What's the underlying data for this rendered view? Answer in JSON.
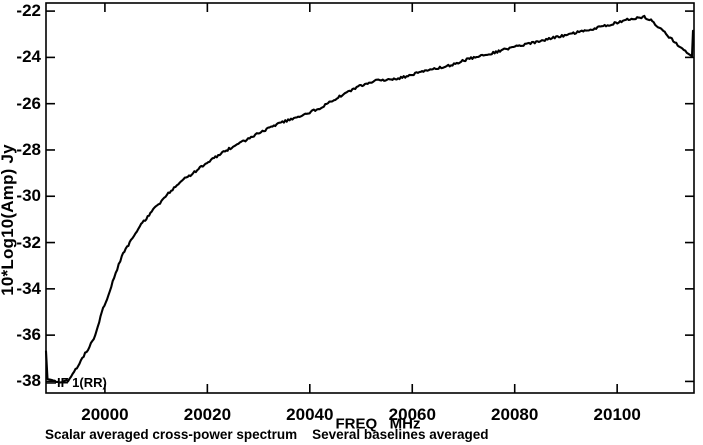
{
  "chart_data": {
    "type": "line",
    "title": "",
    "xlabel": "FREQ   MHz",
    "ylabel": "10*Log10(Amp) Jy",
    "caption": "Scalar averaged cross-power spectrum    Several baselines averaged",
    "annotation": "IF 1(RR)",
    "background": "#ffffff",
    "axis_color": "#000000",
    "grid": false,
    "legend": false,
    "x_range": [
      19988.5,
      20115.0
    ],
    "y_range": [
      -38.5,
      -21.65
    ],
    "x_ticks": [
      20000,
      20020,
      20040,
      20060,
      20080,
      20100
    ],
    "y_ticks": [
      -22,
      -24,
      -26,
      -28,
      -30,
      -32,
      -34,
      -36,
      -38
    ],
    "series": [
      {
        "name": "IF 1(RR)",
        "color": "#000000",
        "points": [
          [
            19988.5,
            -36.7
          ],
          [
            19988.8,
            -37.9
          ],
          [
            19989.9,
            -37.95
          ],
          [
            19990.8,
            -38.0
          ],
          [
            19991.8,
            -38.05
          ],
          [
            19992.8,
            -37.95
          ],
          [
            19994.0,
            -37.6
          ],
          [
            19995.3,
            -37.1
          ],
          [
            19996.7,
            -36.6
          ],
          [
            19998.1,
            -36.05
          ],
          [
            19999.4,
            -35.0
          ],
          [
            20000.4,
            -34.45
          ],
          [
            20001.8,
            -33.5
          ],
          [
            20003.3,
            -32.6
          ],
          [
            20005.1,
            -31.9
          ],
          [
            20006.8,
            -31.3
          ],
          [
            20009.4,
            -30.6
          ],
          [
            20012.1,
            -29.95
          ],
          [
            20014.6,
            -29.4
          ],
          [
            20017.2,
            -29.0
          ],
          [
            20019.9,
            -28.55
          ],
          [
            20022.4,
            -28.2
          ],
          [
            20025.0,
            -27.85
          ],
          [
            20027.7,
            -27.55
          ],
          [
            20030.2,
            -27.25
          ],
          [
            20034.1,
            -26.85
          ],
          [
            20038.0,
            -26.55
          ],
          [
            20041.9,
            -26.2
          ],
          [
            20045.8,
            -25.7
          ],
          [
            20049.7,
            -25.25
          ],
          [
            20052.6,
            -25.02
          ],
          [
            20055.6,
            -24.97
          ],
          [
            20057.5,
            -24.9
          ],
          [
            20061.4,
            -24.65
          ],
          [
            20064.3,
            -24.5
          ],
          [
            20067.3,
            -24.35
          ],
          [
            20071.2,
            -24.05
          ],
          [
            20075.0,
            -23.85
          ],
          [
            20079.0,
            -23.6
          ],
          [
            20082.8,
            -23.4
          ],
          [
            20086.7,
            -23.2
          ],
          [
            20090.6,
            -23.0
          ],
          [
            20094.5,
            -22.8
          ],
          [
            20098.4,
            -22.6
          ],
          [
            20101.4,
            -22.4
          ],
          [
            20103.9,
            -22.3
          ],
          [
            20105.3,
            -22.25
          ],
          [
            20106.6,
            -22.4
          ],
          [
            20108.2,
            -22.7
          ],
          [
            20110.1,
            -23.1
          ],
          [
            20112.1,
            -23.5
          ],
          [
            20113.6,
            -23.8
          ],
          [
            20114.6,
            -23.95
          ],
          [
            20114.8,
            -22.85
          ]
        ]
      }
    ]
  }
}
